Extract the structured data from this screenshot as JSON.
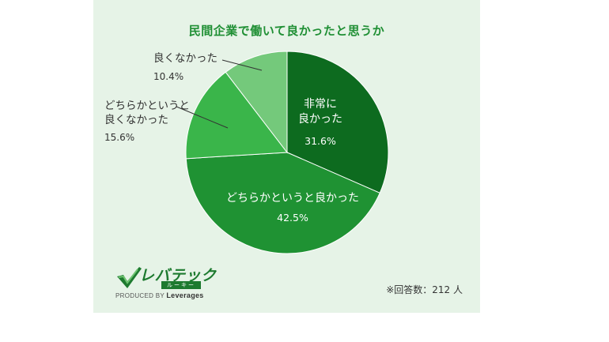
{
  "chart_data": {
    "type": "pie",
    "title": "民間企業で働いて良かったと思うか",
    "slices": [
      {
        "label_lines": [
          "非常に",
          "良かった"
        ],
        "value": 31.6,
        "value_text": "31.6%",
        "color": "#0d6b1f"
      },
      {
        "label_lines": [
          "どちらかというと良かった"
        ],
        "value": 42.5,
        "value_text": "42.5%",
        "color": "#1f9233"
      },
      {
        "label_lines": [
          "どちらかというと",
          "良くなかった"
        ],
        "value": 15.6,
        "value_text": "15.6%",
        "color": "#3ab54a"
      },
      {
        "label_lines": [
          "良くなかった"
        ],
        "value": 10.4,
        "value_text": "10.4%",
        "color": "#74c97b"
      }
    ],
    "start": "12 o'clock",
    "direction": "clockwise",
    "legend": "none"
  },
  "footer": {
    "respondents": "※回答数：212 人"
  },
  "logo": {
    "name": "レバテック",
    "sub": "ルーキー",
    "produced_by": "PRODUCED BY",
    "company": "Leverages"
  }
}
